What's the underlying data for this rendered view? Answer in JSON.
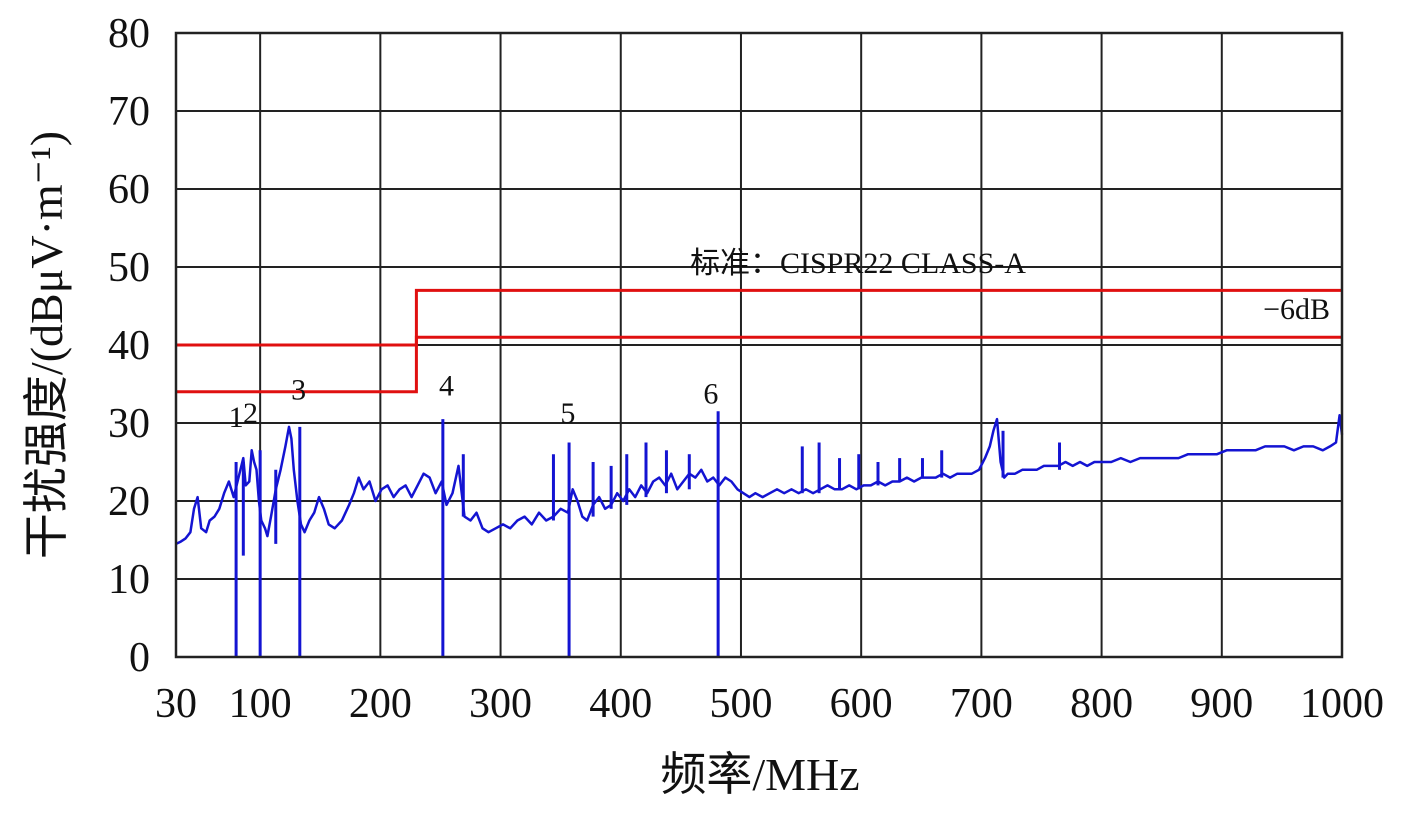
{
  "chart_data": {
    "type": "line",
    "title": "",
    "xlabel": "频率/MHz",
    "ylabel": "干扰强度/(dBμV·m⁻¹)",
    "xlim": [
      30,
      1000
    ],
    "ylim": [
      0,
      80
    ],
    "x_ticks": [
      30,
      100,
      200,
      300,
      400,
      500,
      600,
      700,
      800,
      900,
      1000
    ],
    "y_ticks": [
      0,
      10,
      20,
      30,
      40,
      50,
      60,
      70,
      80
    ],
    "grid": true,
    "colors": {
      "measurement": "#1414d2",
      "limit": "#e01010",
      "grid": "#222222"
    },
    "limit_title": "标准：CISPR22 CLASS-A",
    "limit_series": [
      {
        "label": "",
        "points": [
          [
            30,
            40
          ],
          [
            230,
            40
          ],
          [
            230,
            47
          ],
          [
            1000,
            47
          ]
        ]
      },
      {
        "label": "−6dB",
        "points": [
          [
            30,
            34
          ],
          [
            230,
            34
          ],
          [
            230,
            41
          ],
          [
            1000,
            41
          ]
        ]
      }
    ],
    "series": [
      {
        "points": [
          [
            30,
            14.5
          ],
          [
            34,
            14.8
          ],
          [
            38,
            15.2
          ],
          [
            42,
            16
          ],
          [
            45,
            19
          ],
          [
            48,
            20.5
          ],
          [
            51,
            16.5
          ],
          [
            55,
            16
          ],
          [
            58,
            17.5
          ],
          [
            62,
            18
          ],
          [
            66,
            19
          ],
          [
            70,
            21
          ],
          [
            74,
            22.5
          ],
          [
            78,
            20.5
          ],
          [
            82,
            23
          ],
          [
            86,
            25.5
          ],
          [
            88,
            22
          ],
          [
            91,
            22.5
          ],
          [
            93,
            26.5
          ],
          [
            95,
            25
          ],
          [
            97,
            24
          ],
          [
            99,
            20
          ],
          [
            101,
            17.5
          ],
          [
            104,
            16.5
          ],
          [
            106,
            15.5
          ],
          [
            109,
            18
          ],
          [
            113,
            21.5
          ],
          [
            117,
            24
          ],
          [
            121,
            27
          ],
          [
            124,
            29.5
          ],
          [
            126,
            28
          ],
          [
            128,
            24
          ],
          [
            131,
            20
          ],
          [
            134,
            17
          ],
          [
            137,
            16
          ],
          [
            141,
            17.5
          ],
          [
            145,
            18.5
          ],
          [
            149,
            20.5
          ],
          [
            153,
            19
          ],
          [
            157,
            17
          ],
          [
            162,
            16.5
          ],
          [
            168,
            17.5
          ],
          [
            174,
            19.5
          ],
          [
            178,
            21
          ],
          [
            182,
            23
          ],
          [
            186,
            21.5
          ],
          [
            191,
            22.5
          ],
          [
            196,
            20
          ],
          [
            201,
            21.5
          ],
          [
            206,
            22
          ],
          [
            211,
            20.5
          ],
          [
            216,
            21.5
          ],
          [
            221,
            22
          ],
          [
            226,
            20.5
          ],
          [
            231,
            22
          ],
          [
            236,
            23.5
          ],
          [
            241,
            23
          ],
          [
            246,
            21
          ],
          [
            251,
            22.5
          ],
          [
            255,
            19.5
          ],
          [
            260,
            21
          ],
          [
            265,
            24.5
          ],
          [
            270,
            18
          ],
          [
            275,
            17.5
          ],
          [
            280,
            18.5
          ],
          [
            285,
            16.5
          ],
          [
            290,
            16
          ],
          [
            296,
            16.5
          ],
          [
            302,
            17
          ],
          [
            308,
            16.5
          ],
          [
            314,
            17.5
          ],
          [
            320,
            18
          ],
          [
            326,
            17
          ],
          [
            332,
            18.5
          ],
          [
            338,
            17.5
          ],
          [
            344,
            18
          ],
          [
            350,
            19
          ],
          [
            356,
            18.5
          ],
          [
            360,
            21.5
          ],
          [
            364,
            20
          ],
          [
            368,
            18
          ],
          [
            372,
            17.5
          ],
          [
            377,
            19.5
          ],
          [
            382,
            20.5
          ],
          [
            387,
            19
          ],
          [
            392,
            19.5
          ],
          [
            397,
            21
          ],
          [
            402,
            20
          ],
          [
            407,
            21.5
          ],
          [
            412,
            20.5
          ],
          [
            417,
            22
          ],
          [
            422,
            21
          ],
          [
            427,
            22.5
          ],
          [
            432,
            23
          ],
          [
            437,
            22
          ],
          [
            442,
            23.5
          ],
          [
            447,
            21.5
          ],
          [
            452,
            22.5
          ],
          [
            457,
            23.5
          ],
          [
            462,
            23
          ],
          [
            467,
            24
          ],
          [
            472,
            22.5
          ],
          [
            477,
            23
          ],
          [
            482,
            22
          ],
          [
            487,
            23
          ],
          [
            492,
            22.5
          ],
          [
            497,
            21.5
          ],
          [
            502,
            21
          ],
          [
            507,
            20.5
          ],
          [
            512,
            21
          ],
          [
            518,
            20.5
          ],
          [
            524,
            21
          ],
          [
            530,
            21.5
          ],
          [
            536,
            21
          ],
          [
            542,
            21.5
          ],
          [
            548,
            21
          ],
          [
            554,
            21.5
          ],
          [
            560,
            21
          ],
          [
            566,
            21.5
          ],
          [
            572,
            22
          ],
          [
            578,
            21.5
          ],
          [
            584,
            21.5
          ],
          [
            590,
            22
          ],
          [
            596,
            21.5
          ],
          [
            602,
            22
          ],
          [
            608,
            22
          ],
          [
            614,
            22.5
          ],
          [
            620,
            22
          ],
          [
            626,
            22.5
          ],
          [
            632,
            22.5
          ],
          [
            638,
            23
          ],
          [
            644,
            22.5
          ],
          [
            650,
            23
          ],
          [
            656,
            23
          ],
          [
            662,
            23
          ],
          [
            668,
            23.5
          ],
          [
            674,
            23
          ],
          [
            680,
            23.5
          ],
          [
            686,
            23.5
          ],
          [
            692,
            23.5
          ],
          [
            698,
            24
          ],
          [
            703,
            25.5
          ],
          [
            707,
            27
          ],
          [
            710,
            29
          ],
          [
            713,
            30.5
          ],
          [
            716,
            25
          ],
          [
            719,
            23
          ],
          [
            722,
            23.5
          ],
          [
            728,
            23.5
          ],
          [
            734,
            24
          ],
          [
            740,
            24
          ],
          [
            746,
            24
          ],
          [
            752,
            24.5
          ],
          [
            758,
            24.5
          ],
          [
            764,
            24.5
          ],
          [
            770,
            25
          ],
          [
            776,
            24.5
          ],
          [
            782,
            25
          ],
          [
            788,
            24.5
          ],
          [
            794,
            25
          ],
          [
            800,
            25
          ],
          [
            808,
            25
          ],
          [
            816,
            25.5
          ],
          [
            824,
            25
          ],
          [
            832,
            25.5
          ],
          [
            840,
            25.5
          ],
          [
            848,
            25.5
          ],
          [
            856,
            25.5
          ],
          [
            864,
            25.5
          ],
          [
            872,
            26
          ],
          [
            880,
            26
          ],
          [
            888,
            26
          ],
          [
            896,
            26
          ],
          [
            904,
            26.5
          ],
          [
            912,
            26.5
          ],
          [
            920,
            26.5
          ],
          [
            928,
            26.5
          ],
          [
            936,
            27
          ],
          [
            944,
            27
          ],
          [
            952,
            27
          ],
          [
            960,
            26.5
          ],
          [
            968,
            27
          ],
          [
            976,
            27
          ],
          [
            984,
            26.5
          ],
          [
            990,
            27
          ],
          [
            995,
            27.5
          ],
          [
            998,
            31
          ],
          [
            1000,
            28.5
          ]
        ]
      }
    ],
    "spikes": [
      {
        "x": 80,
        "top": 25,
        "bottom": 0
      },
      {
        "x": 100,
        "top": 26.5,
        "bottom": 0
      },
      {
        "x": 133,
        "top": 29.5,
        "bottom": 0
      },
      {
        "x": 252,
        "top": 30.5,
        "bottom": 0
      },
      {
        "x": 357,
        "top": 27.5,
        "bottom": 0
      },
      {
        "x": 481,
        "top": 31.5,
        "bottom": 0
      },
      {
        "x": 86,
        "top": 25,
        "bottom": 13
      },
      {
        "x": 113,
        "top": 24,
        "bottom": 14.5
      },
      {
        "x": 269,
        "top": 26,
        "bottom": 18
      },
      {
        "x": 344,
        "top": 26,
        "bottom": 17.5
      },
      {
        "x": 377,
        "top": 25,
        "bottom": 18
      },
      {
        "x": 392,
        "top": 24.5,
        "bottom": 19
      },
      {
        "x": 405,
        "top": 26,
        "bottom": 19.5
      },
      {
        "x": 421,
        "top": 27.5,
        "bottom": 20.5
      },
      {
        "x": 438,
        "top": 26.5,
        "bottom": 21
      },
      {
        "x": 457,
        "top": 26,
        "bottom": 21.5
      },
      {
        "x": 551,
        "top": 27,
        "bottom": 21
      },
      {
        "x": 565,
        "top": 27.5,
        "bottom": 21
      },
      {
        "x": 582,
        "top": 25.5,
        "bottom": 21.5
      },
      {
        "x": 598,
        "top": 26,
        "bottom": 21.5
      },
      {
        "x": 614,
        "top": 25,
        "bottom": 22
      },
      {
        "x": 632,
        "top": 25.5,
        "bottom": 22.5
      },
      {
        "x": 651,
        "top": 25.5,
        "bottom": 23
      },
      {
        "x": 667,
        "top": 26.5,
        "bottom": 23
      },
      {
        "x": 718,
        "top": 29,
        "bottom": 23
      },
      {
        "x": 765,
        "top": 27.5,
        "bottom": 24
      }
    ],
    "markers": [
      {
        "label": "1",
        "x": 80,
        "y": 29.5
      },
      {
        "label": "2",
        "x": 92,
        "y": 30
      },
      {
        "label": "3",
        "x": 132,
        "y": 33
      },
      {
        "label": "4",
        "x": 255,
        "y": 33.5
      },
      {
        "label": "5",
        "x": 356,
        "y": 30
      },
      {
        "label": "6",
        "x": 475,
        "y": 32.5
      }
    ]
  }
}
